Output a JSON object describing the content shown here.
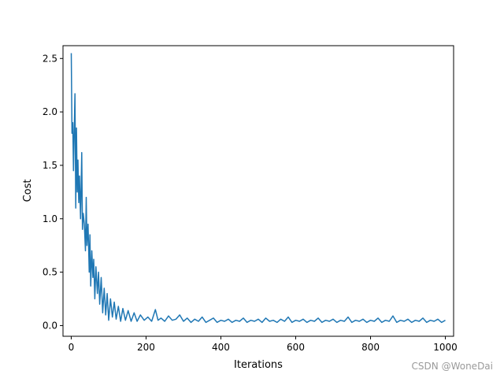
{
  "chart_data": {
    "type": "line",
    "xlabel": "Iterations",
    "ylabel": "Cost",
    "xlim": [
      -22,
      1022
    ],
    "ylim": [
      -0.1,
      2.62
    ],
    "xticks": [
      0,
      200,
      400,
      600,
      800,
      1000
    ],
    "xtick_labels": [
      "0",
      "200",
      "400",
      "600",
      "800",
      "1000"
    ],
    "yticks": [
      0.0,
      0.5,
      1.0,
      1.5,
      2.0,
      2.5
    ],
    "ytick_labels": [
      "0.0",
      "0.5",
      "1.0",
      "1.5",
      "2.0",
      "2.5"
    ],
    "grid": false,
    "series": [
      {
        "color": "#1f77b4",
        "x": [
          0,
          2,
          4,
          6,
          8,
          10,
          12,
          14,
          16,
          18,
          20,
          22,
          25,
          28,
          30,
          32,
          35,
          38,
          40,
          42,
          45,
          48,
          50,
          52,
          55,
          58,
          60,
          63,
          66,
          70,
          73,
          76,
          80,
          84,
          88,
          92,
          96,
          100,
          105,
          110,
          115,
          120,
          126,
          132,
          138,
          145,
          152,
          160,
          168,
          176,
          185,
          195,
          205,
          215,
          225,
          232,
          240,
          250,
          260,
          270,
          280,
          290,
          300,
          310,
          320,
          330,
          340,
          350,
          360,
          370,
          380,
          390,
          400,
          410,
          420,
          430,
          440,
          450,
          460,
          470,
          480,
          490,
          500,
          510,
          520,
          530,
          540,
          550,
          560,
          570,
          580,
          590,
          600,
          610,
          620,
          630,
          640,
          650,
          660,
          670,
          680,
          690,
          700,
          710,
          720,
          730,
          740,
          750,
          760,
          770,
          780,
          790,
          800,
          810,
          820,
          830,
          840,
          850,
          860,
          870,
          880,
          890,
          900,
          910,
          920,
          930,
          940,
          950,
          960,
          970,
          980,
          990,
          1000
        ],
        "y": [
          2.55,
          1.8,
          1.9,
          1.45,
          1.85,
          2.17,
          1.1,
          1.85,
          1.25,
          1.55,
          1.15,
          1.4,
          1.0,
          1.62,
          0.9,
          1.05,
          0.95,
          0.7,
          1.2,
          0.75,
          0.95,
          0.5,
          0.85,
          0.37,
          0.7,
          0.45,
          0.62,
          0.25,
          0.55,
          0.3,
          0.5,
          0.2,
          0.45,
          0.12,
          0.35,
          0.1,
          0.3,
          0.05,
          0.25,
          0.08,
          0.22,
          0.06,
          0.18,
          0.04,
          0.16,
          0.05,
          0.14,
          0.04,
          0.12,
          0.04,
          0.1,
          0.05,
          0.08,
          0.04,
          0.15,
          0.05,
          0.07,
          0.04,
          0.09,
          0.05,
          0.06,
          0.1,
          0.04,
          0.07,
          0.03,
          0.06,
          0.04,
          0.08,
          0.03,
          0.05,
          0.07,
          0.03,
          0.05,
          0.04,
          0.06,
          0.03,
          0.05,
          0.04,
          0.07,
          0.03,
          0.05,
          0.04,
          0.06,
          0.03,
          0.07,
          0.04,
          0.05,
          0.03,
          0.06,
          0.04,
          0.08,
          0.03,
          0.05,
          0.04,
          0.06,
          0.03,
          0.05,
          0.04,
          0.07,
          0.03,
          0.05,
          0.04,
          0.06,
          0.03,
          0.05,
          0.04,
          0.08,
          0.03,
          0.05,
          0.04,
          0.06,
          0.03,
          0.05,
          0.04,
          0.07,
          0.03,
          0.05,
          0.04,
          0.09,
          0.03,
          0.05,
          0.04,
          0.06,
          0.03,
          0.05,
          0.04,
          0.07,
          0.03,
          0.05,
          0.04,
          0.06,
          0.03,
          0.05
        ]
      }
    ]
  },
  "watermark": "CSDN @WoneDai"
}
